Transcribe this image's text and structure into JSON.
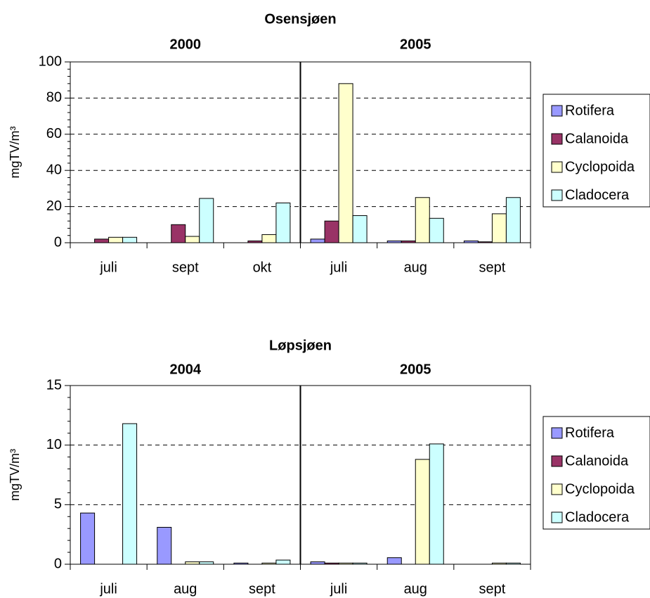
{
  "colors": {
    "Rotifera": "#9999ff",
    "Calanoida": "#993366",
    "Cyclopoida": "#ffffcc",
    "Cladocera": "#ccffff"
  },
  "chart_data": [
    {
      "type": "bar",
      "title": "Osensjøen",
      "ylabel": "mgTV/m³",
      "ylim": [
        0,
        100
      ],
      "yticks": [
        0,
        20,
        40,
        60,
        80,
        100
      ],
      "grid": "dashed horizontal",
      "legend_position": "right",
      "groups": [
        {
          "label": "2000",
          "categories": [
            "juli",
            "sept",
            "okt"
          ]
        },
        {
          "label": "2005",
          "categories": [
            "juli",
            "aug",
            "sept"
          ]
        }
      ],
      "categories": [
        "juli",
        "sept",
        "okt",
        "juli",
        "aug",
        "sept"
      ],
      "series": [
        {
          "name": "Rotifera",
          "values": [
            0,
            0,
            0,
            2,
            1,
            1
          ]
        },
        {
          "name": "Calanoida",
          "values": [
            2,
            10,
            1,
            12,
            1,
            0.5
          ]
        },
        {
          "name": "Cyclopoida",
          "values": [
            3,
            3.5,
            4.5,
            88,
            25,
            16
          ]
        },
        {
          "name": "Cladocera",
          "values": [
            3,
            24.5,
            22,
            15,
            13.5,
            25
          ]
        }
      ]
    },
    {
      "type": "bar",
      "title": "Løpsjøen",
      "ylabel": "mgTV/m³",
      "ylim": [
        0,
        15
      ],
      "yticks": [
        0,
        5,
        10,
        15
      ],
      "grid": "dashed horizontal",
      "legend_position": "right",
      "groups": [
        {
          "label": "2004",
          "categories": [
            "juli",
            "aug",
            "sept"
          ]
        },
        {
          "label": "2005",
          "categories": [
            "juli",
            "aug",
            "sept"
          ]
        }
      ],
      "categories": [
        "juli",
        "aug",
        "sept",
        "juli",
        "aug",
        "sept"
      ],
      "series": [
        {
          "name": "Rotifera",
          "values": [
            4.3,
            3.1,
            0.1,
            0.2,
            0.55,
            0
          ]
        },
        {
          "name": "Calanoida",
          "values": [
            0,
            0,
            0,
            0.1,
            0,
            0
          ]
        },
        {
          "name": "Cyclopoida",
          "values": [
            0,
            0.2,
            0.1,
            0.1,
            8.8,
            0.1
          ]
        },
        {
          "name": "Cladocera",
          "values": [
            11.8,
            0.2,
            0.35,
            0.1,
            10.1,
            0.1
          ]
        }
      ]
    }
  ]
}
